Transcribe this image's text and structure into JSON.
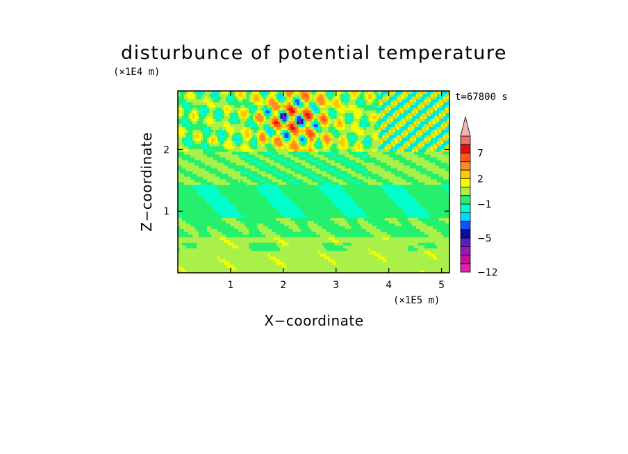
{
  "chart_data": {
    "type": "heatmap",
    "title": "disturbunce of potential temperature",
    "xlabel": "X−coordinate",
    "ylabel": "Z−coordinate",
    "x_unit_label": "(×1E5 m)",
    "y_unit_label": "(×1E4 m)",
    "time_label": "t=67800 s",
    "xlim": [
      0,
      5.15
    ],
    "ylim": [
      0,
      2.95
    ],
    "x_ticks": [
      {
        "value": 1,
        "label": "1"
      },
      {
        "value": 2,
        "label": "2"
      },
      {
        "value": 3,
        "label": "3"
      },
      {
        "value": 4,
        "label": "4"
      },
      {
        "value": 5,
        "label": "5"
      }
    ],
    "y_ticks": [
      {
        "value": 1,
        "label": "1"
      },
      {
        "value": 2,
        "label": "2"
      }
    ],
    "colorbar": {
      "extend": "max",
      "levels": [
        -12,
        -10,
        -8,
        -6,
        -5,
        -4,
        -3,
        -2,
        -1,
        0,
        1,
        2,
        3,
        5,
        7,
        9,
        11
      ],
      "colors": [
        "#e61ea8",
        "#c80f9b",
        "#9a17b4",
        "#5a1fc3",
        "#0a0aa0",
        "#1450ff",
        "#00d8ff",
        "#00ffcc",
        "#24f06e",
        "#aaf04a",
        "#f5ff00",
        "#ffc800",
        "#ff8a28",
        "#ff5a14",
        "#e10f0f",
        "#f06e6e",
        "#f5b4b4"
      ],
      "tick_labels": [
        {
          "value": 7,
          "label": "7"
        },
        {
          "value": 2,
          "label": "2"
        },
        {
          "value": -1,
          "label": "−1"
        },
        {
          "value": -5,
          "label": "−5"
        },
        {
          "value": -12,
          "label": "−12"
        }
      ]
    }
  }
}
